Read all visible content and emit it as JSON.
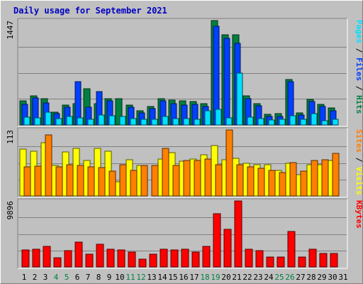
{
  "chart_data": {
    "type": "bar",
    "title": "Daily usage for September 2021",
    "days": [
      "1",
      "2",
      "3",
      "4",
      "5",
      "6",
      "7",
      "8",
      "9",
      "10",
      "11",
      "12",
      "13",
      "14",
      "15",
      "16",
      "17",
      "18",
      "19",
      "20",
      "21",
      "22",
      "23",
      "24",
      "25",
      "26",
      "27",
      "28",
      "29",
      "30",
      "31"
    ],
    "weekend_days": [
      "4",
      "5",
      "11",
      "12",
      "18",
      "19",
      "25",
      "26"
    ],
    "colors": {
      "hits": "#008040",
      "files": "#0040ff",
      "pages": "#00e0ff",
      "visits": "#ffff00",
      "sites": "#ff8000",
      "kbytes": "#ff0000",
      "weekday_label": "#000000",
      "weekend_label": "#008040"
    },
    "panels": [
      {
        "id": "hits_files_pages",
        "ymax": 1447,
        "ymax_label": "1447",
        "right_label": [
          {
            "text": "Pages",
            "color": "#00e0ff"
          },
          {
            "text": " / ",
            "color": "#000000"
          },
          {
            "text": "Files",
            "color": "#0040ff"
          },
          {
            "text": " / ",
            "color": "#000000"
          },
          {
            "text": "Hits",
            "color": "#008040"
          }
        ],
        "series": [
          {
            "name": "Hits",
            "color": "#008040",
            "values": [
              330,
              400,
              360,
              180,
              280,
              300,
              500,
              300,
              360,
              360,
              280,
              200,
              260,
              360,
              340,
              330,
              320,
              300,
              1447,
              1250,
              1250,
              400,
              300,
              150,
              160,
              630,
              170,
              350,
              290,
              240,
              null
            ]
          },
          {
            "name": "Files",
            "color": "#0040ff",
            "values": [
              290,
              370,
              310,
              160,
              250,
              600,
              250,
              460,
              330,
              0,
              250,
              170,
              230,
              330,
              300,
              280,
              290,
              260,
              1370,
              1200,
              1130,
              360,
              270,
              120,
              120,
              600,
              140,
              320,
              260,
              200,
              null
            ]
          },
          {
            "name": "Pages",
            "color": "#00e0ff",
            "values": [
              110,
              100,
              180,
              90,
              120,
              100,
              80,
              140,
              130,
              120,
              90,
              80,
              80,
              120,
              90,
              90,
              80,
              200,
              220,
              100,
              720,
              110,
              90,
              70,
              80,
              130,
              80,
              160,
              60,
              80,
              null
            ]
          }
        ]
      },
      {
        "id": "visits_sites",
        "ymax": 113,
        "ymax_label": "113",
        "right_label": [
          {
            "text": "Sites",
            "color": "#ff8000"
          },
          {
            "text": " / ",
            "color": "#000000"
          },
          {
            "text": "Visits",
            "color": "#ffff00"
          }
        ],
        "series": [
          {
            "name": "Visits",
            "color": "#ffff00",
            "values": [
              80,
              77,
              91,
              52,
              75,
              82,
              61,
              82,
              76,
              24,
              62,
              52,
              0,
              63,
              74,
              59,
              63,
              71,
              86,
              62,
              65,
              56,
              53,
              53,
              44,
              56,
              37,
              54,
              53,
              61,
              null
            ]
          },
          {
            "name": "Sites",
            "color": "#ff8000",
            "values": [
              50,
              51,
              105,
              50,
              53,
              52,
              50,
              49,
              42,
              53,
              44,
              52,
              52,
              81,
              52,
              61,
              61,
              63,
              54,
              113,
              54,
              50,
              47,
              44,
              40,
              57,
              42,
              61,
              62,
              73,
              null
            ]
          }
        ]
      },
      {
        "id": "kbytes",
        "ymax": 9896,
        "ymax_label": "9896",
        "right_label": [
          {
            "text": "KBytes",
            "color": "#ff0000"
          }
        ],
        "series": [
          {
            "name": "KBytes",
            "color": "#ff0000",
            "values": [
              2600,
              2700,
              3100,
              1400,
              2400,
              3700,
              1900,
              3400,
              2700,
              2600,
              2200,
              1200,
              1900,
              2700,
              2600,
              2700,
              2200,
              3100,
              8000,
              5600,
              9896,
              2700,
              2400,
              1500,
              1500,
              5300,
              1500,
              2700,
              2000,
              2000,
              null
            ]
          }
        ]
      }
    ]
  }
}
